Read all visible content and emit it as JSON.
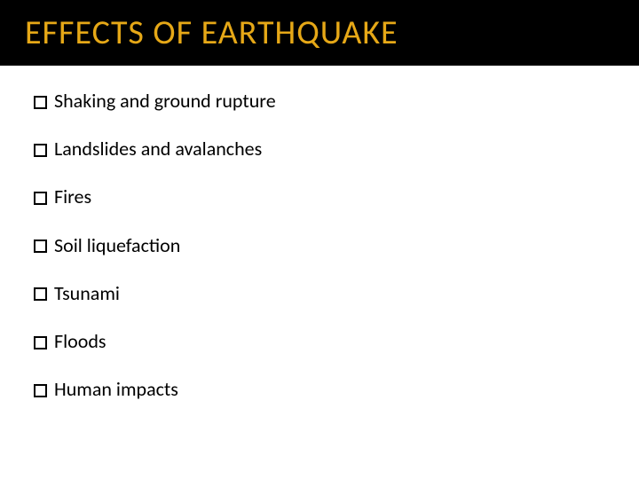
{
  "slide": {
    "title": "EFFECTS OF EARTHQUAKE",
    "title_color": "#e6a817",
    "title_bg": "#000000",
    "title_fontsize": 38,
    "body_bg": "#ffffff",
    "bullet_text_color": "#000000",
    "bullet_text_fontsize": 22,
    "bullet_box_border": "#000000",
    "bullet_box_size": 15,
    "items": [
      {
        "text": "Shaking and ground rupture"
      },
      {
        "text": "Landslides and avalanches"
      },
      {
        "text": "Fires"
      },
      {
        "text": "Soil liquefaction"
      },
      {
        "text": "Tsunami"
      },
      {
        "text": "Floods"
      },
      {
        "text": "Human impacts"
      }
    ]
  }
}
